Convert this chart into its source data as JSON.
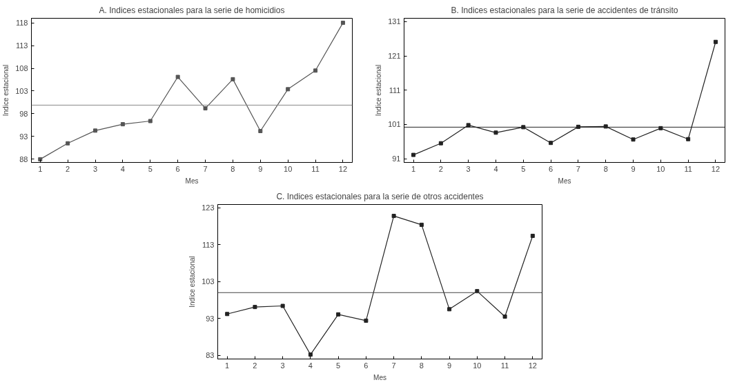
{
  "chart_data": [
    {
      "type": "line",
      "title": "A. Indices estacionales para la serie de homicidios",
      "xlabel": "Mes",
      "ylabel": "Indice estacional",
      "x": [
        1,
        2,
        3,
        4,
        5,
        6,
        7,
        8,
        9,
        10,
        11,
        12
      ],
      "xlim": [
        0.68,
        12.34
      ],
      "xticks": [
        1,
        2,
        3,
        4,
        5,
        6,
        7,
        8,
        9,
        10,
        11,
        12
      ],
      "ylim": [
        87.3,
        119
      ],
      "yticks": [
        88,
        93,
        98,
        103,
        108,
        113,
        118
      ],
      "marker": "square",
      "line_style": "solid",
      "grid": false,
      "series": [
        {
          "color": "#555555",
          "values": [
            88.0,
            91.5,
            94.3,
            95.7,
            96.4,
            106.1,
            99.2,
            105.6,
            94.2,
            103.4,
            107.5,
            118.0
          ]
        }
      ],
      "ref_lines": [
        {
          "axis": "y",
          "value": 99.9,
          "color": "#888888"
        }
      ]
    },
    {
      "type": "line",
      "title": "B. Indices estacionales para la serie de accidentes de tránsito",
      "xlabel": "Mes",
      "ylabel": "Indice estacional",
      "x": [
        1,
        2,
        3,
        4,
        5,
        6,
        7,
        8,
        9,
        10,
        11,
        12
      ],
      "xlim": [
        0.66,
        12.34
      ],
      "xticks": [
        1,
        2,
        3,
        4,
        5,
        6,
        7,
        8,
        9,
        10,
        11,
        12
      ],
      "ylim": [
        89.9,
        132
      ],
      "yticks": [
        91,
        101,
        111,
        121,
        131
      ],
      "marker": "square",
      "line_style": "solid",
      "grid": false,
      "series": [
        {
          "color": "#222222",
          "values": [
            92.1,
            95.5,
            100.8,
            98.6,
            100.2,
            95.6,
            100.3,
            100.4,
            96.6,
            99.9,
            96.7,
            125.1
          ]
        }
      ],
      "ref_lines": [
        {
          "axis": "y",
          "value": 100.2,
          "color": "#222222"
        }
      ]
    },
    {
      "type": "line",
      "title": "C. Indices estacionales para la serie de otros accidentes",
      "xlabel": "Mes",
      "ylabel": "Indice estacional",
      "x": [
        1,
        2,
        3,
        4,
        5,
        6,
        7,
        8,
        9,
        10,
        11,
        12
      ],
      "xlim": [
        0.66,
        12.34
      ],
      "xticks": [
        1,
        2,
        3,
        4,
        5,
        6,
        7,
        8,
        9,
        10,
        11,
        12
      ],
      "ylim": [
        82.0,
        123.9
      ],
      "yticks": [
        83,
        93,
        103,
        113,
        123
      ],
      "marker": "square",
      "line_style": "solid",
      "grid": false,
      "series": [
        {
          "color": "#222222",
          "values": [
            94.2,
            96.1,
            96.4,
            83.2,
            94.1,
            92.4,
            120.8,
            118.4,
            95.5,
            100.4,
            93.5,
            115.4
          ]
        }
      ],
      "ref_lines": [
        {
          "axis": "y",
          "value": 100.0,
          "color": "#444444"
        }
      ]
    }
  ]
}
